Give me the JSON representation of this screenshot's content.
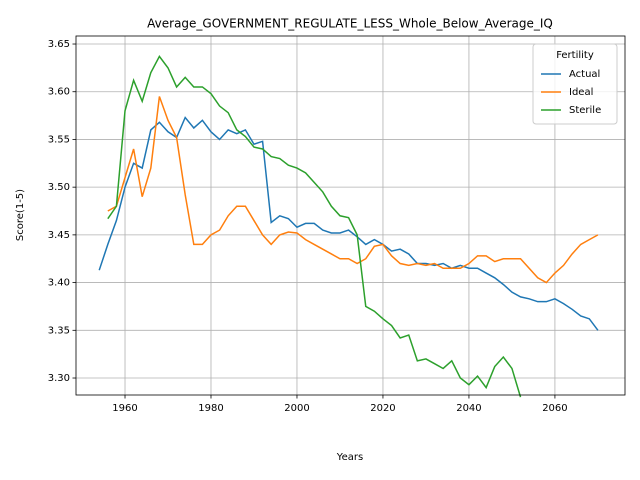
{
  "chart_data": {
    "type": "line",
    "title": "Average_GOVERNMENT_REGULATE_LESS_Whole_Below_Average_IQ",
    "xlabel": "Years",
    "ylabel": "Score(1-5)",
    "x": [
      1954,
      1956,
      1958,
      1960,
      1962,
      1964,
      1966,
      1968,
      1970,
      1972,
      1974,
      1976,
      1978,
      1980,
      1982,
      1984,
      1986,
      1988,
      1990,
      1992,
      1994,
      1996,
      1998,
      2000,
      2002,
      2004,
      2006,
      2008,
      2010,
      2012,
      2014,
      2016,
      2018,
      2020,
      2022,
      2024,
      2026,
      2028,
      2030,
      2032,
      2034,
      2036,
      2038,
      2040,
      2042,
      2044,
      2046,
      2048,
      2050,
      2052,
      2054,
      2056,
      2058,
      2060,
      2062,
      2064,
      2066,
      2068,
      2070
    ],
    "series": [
      {
        "name": "Actual",
        "color": "#1f77b4",
        "values": [
          3.413,
          3.44,
          3.465,
          3.5,
          3.525,
          3.52,
          3.56,
          3.568,
          3.558,
          3.552,
          3.573,
          3.562,
          3.57,
          3.558,
          3.55,
          3.56,
          3.556,
          3.56,
          3.545,
          3.548,
          3.463,
          3.47,
          3.467,
          3.458,
          3.462,
          3.462,
          3.455,
          3.452,
          3.452,
          3.455,
          3.448,
          3.44,
          3.445,
          3.44,
          3.433,
          3.435,
          3.43,
          3.42,
          3.42,
          3.418,
          3.42,
          3.415,
          3.418,
          3.415,
          3.415,
          3.41,
          3.405,
          3.398,
          3.39,
          3.385,
          3.383,
          3.38,
          3.38,
          3.383,
          3.378,
          3.372,
          3.365,
          3.362,
          3.35
        ]
      },
      {
        "name": "Ideal",
        "color": "#ff7f0e",
        "values": [
          null,
          3.475,
          3.48,
          3.51,
          3.54,
          3.49,
          3.52,
          3.595,
          3.57,
          3.552,
          3.492,
          3.44,
          3.44,
          3.45,
          3.455,
          3.47,
          3.48,
          3.48,
          3.465,
          3.45,
          3.44,
          3.45,
          3.453,
          3.452,
          3.445,
          3.44,
          3.435,
          3.43,
          3.425,
          3.425,
          3.42,
          3.425,
          3.438,
          3.44,
          3.428,
          3.42,
          3.418,
          3.42,
          3.418,
          3.42,
          3.415,
          3.415,
          3.415,
          3.42,
          3.428,
          3.428,
          3.422,
          3.425,
          3.425,
          3.425,
          3.415,
          3.405,
          3.4,
          3.41,
          3.418,
          3.43,
          3.44,
          3.445,
          3.45
        ]
      },
      {
        "name": "Sterile",
        "color": "#2ca02c",
        "values": [
          null,
          3.467,
          3.48,
          3.58,
          3.612,
          3.59,
          3.62,
          3.637,
          3.625,
          3.605,
          3.615,
          3.605,
          3.605,
          3.598,
          3.585,
          3.578,
          3.56,
          3.553,
          3.542,
          3.54,
          3.532,
          3.53,
          3.523,
          3.52,
          3.515,
          3.505,
          3.495,
          3.48,
          3.47,
          3.468,
          3.45,
          3.375,
          3.37,
          3.362,
          3.355,
          3.342,
          3.345,
          3.318,
          3.32,
          3.315,
          3.31,
          3.318,
          3.3,
          3.293,
          3.302,
          3.29,
          3.312,
          3.322,
          3.31,
          3.28,
          null,
          null,
          null,
          null,
          null,
          null,
          null,
          null,
          null
        ]
      }
    ],
    "xlim": [
      1948.6,
      2076.3
    ],
    "ylim": [
      3.2822,
      3.6584
    ],
    "xticks": [
      1960,
      1980,
      2000,
      2020,
      2040,
      2060
    ],
    "yticks": [
      {
        "value": 3.3,
        "label": "3.30"
      },
      3.35,
      {
        "value": 3.4,
        "label": "3.40"
      },
      3.45,
      {
        "value": 3.5,
        "label": "3.50"
      },
      3.55,
      {
        "value": 3.6,
        "label": "3.60"
      },
      3.65
    ],
    "grid": true,
    "legend": {
      "title": "Fertility",
      "position": "upper right"
    }
  }
}
